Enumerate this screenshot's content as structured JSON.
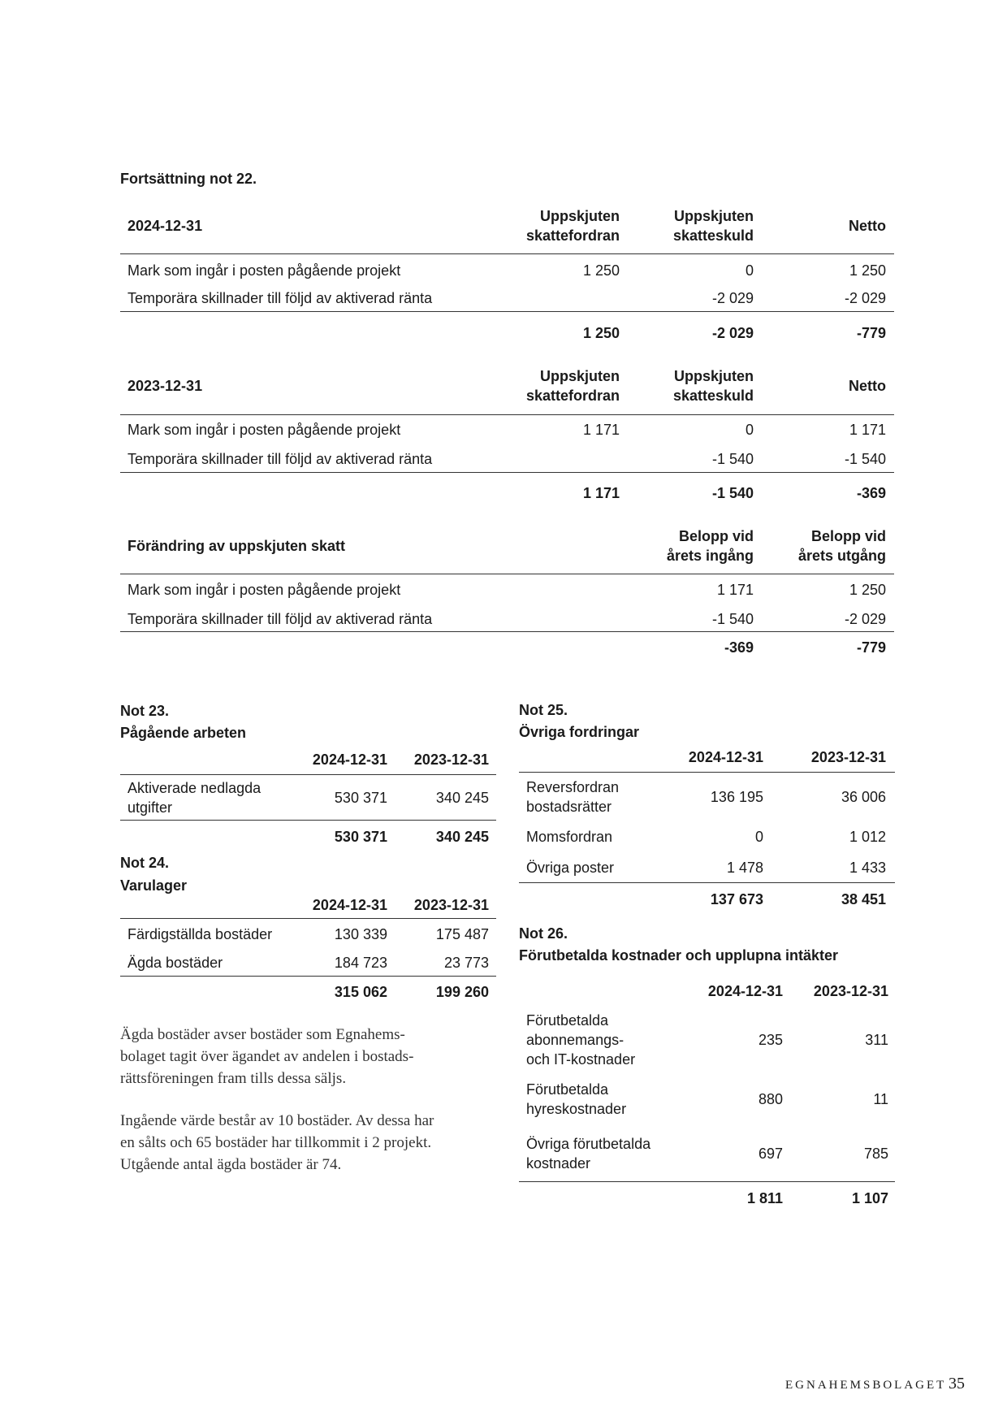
{
  "note22": {
    "heading": "Fortsättning not 22.",
    "tables": [
      {
        "title": "2024-12-31",
        "headers": [
          "Uppskjuten\nskattefordran",
          "Uppskjuten\nskatteskuld",
          "Netto"
        ],
        "rows": [
          [
            "Mark som ingår i posten pågående projekt",
            "1 250",
            "0",
            "1 250"
          ],
          [
            "Temporära skillnader till följd av aktiverad ränta",
            "",
            "-2 029",
            "-2 029"
          ]
        ],
        "total": [
          "",
          "1 250",
          "-2 029",
          "-779"
        ]
      },
      {
        "title": "2023-12-31",
        "headers": [
          "Uppskjuten\nskattefordran",
          "Uppskjuten\nskatteskuld",
          "Netto"
        ],
        "rows": [
          [
            "Mark som ingår i posten pågående projekt",
            "1 171",
            "0",
            "1 171"
          ],
          [
            "Temporära skillnader till följd av aktiverad ränta",
            "",
            "-1 540",
            "-1 540"
          ]
        ],
        "total": [
          "",
          "1 171",
          "-1 540",
          "-369"
        ]
      },
      {
        "title": "Förändring av uppskjuten skatt",
        "headers": [
          "",
          "Belopp vid\nårets ingång",
          "Belopp vid\nårets utgång"
        ],
        "rows": [
          [
            "Mark som ingår i posten pågående projekt",
            "",
            "1 171",
            "1 250"
          ],
          [
            "Temporära skillnader till följd av aktiverad ränta",
            "",
            "-1 540",
            "-2 029"
          ]
        ],
        "total": [
          "",
          "",
          "-369",
          "-779"
        ]
      }
    ]
  },
  "note23": {
    "number": "Not 23.",
    "title": "Pågående arbeten",
    "headers": [
      "2024-12-31",
      "2023-12-31"
    ],
    "rows": [
      [
        "Aktiverade nedlagda\nutgifter",
        "530 371",
        "340 245"
      ]
    ],
    "total": [
      "530 371",
      "340 245"
    ]
  },
  "note24": {
    "number": "Not 24.",
    "title": "Varulager",
    "headers": [
      "2024-12-31",
      "2023-12-31"
    ],
    "rows": [
      [
        "Färdigställda bostäder",
        "130 339",
        "175 487"
      ],
      [
        "Ägda bostäder",
        "184 723",
        "23 773"
      ]
    ],
    "total": [
      "315 062",
      "199 260"
    ],
    "paragraphs": [
      "Ägda bostäder avser bostäder som Egnahems-\nbolaget tagit över ägandet av andelen i bostads-\nrättsföreningen fram tills dessa säljs.",
      "Ingående värde består av 10 bostäder. Av dessa har\nen sålts och 65 bostäder har tillkommit i 2 projekt.\nUtgående antal ägda bostäder är 74."
    ]
  },
  "note25": {
    "number": "Not 25.",
    "title": "Övriga fordringar",
    "headers": [
      "2024-12-31",
      "2023-12-31"
    ],
    "rows": [
      [
        "Reversfordran\nbostadsrätter",
        "136 195",
        "36 006"
      ],
      [
        "Momsfordran",
        "0",
        "1 012"
      ],
      [
        "Övriga poster",
        "1 478",
        "1 433"
      ]
    ],
    "total": [
      "137 673",
      "38 451"
    ]
  },
  "note26": {
    "number": "Not 26.",
    "title": "Förutbetalda kostnader och upplupna intäkter",
    "headers": [
      "2024-12-31",
      "2023-12-31"
    ],
    "rows": [
      [
        "Förutbetalda\nabonnemangs-\noch IT-kostnader",
        "235",
        "311"
      ],
      [
        "Förutbetalda\nhyreskostnader",
        "880",
        "11"
      ],
      [
        "Övriga förutbetalda\nkostnader",
        "697",
        "785"
      ]
    ],
    "total": [
      "1 811",
      "1 107"
    ]
  },
  "footer": {
    "brand": "EGNAHEMSBOLAGET",
    "page_number": "35"
  }
}
